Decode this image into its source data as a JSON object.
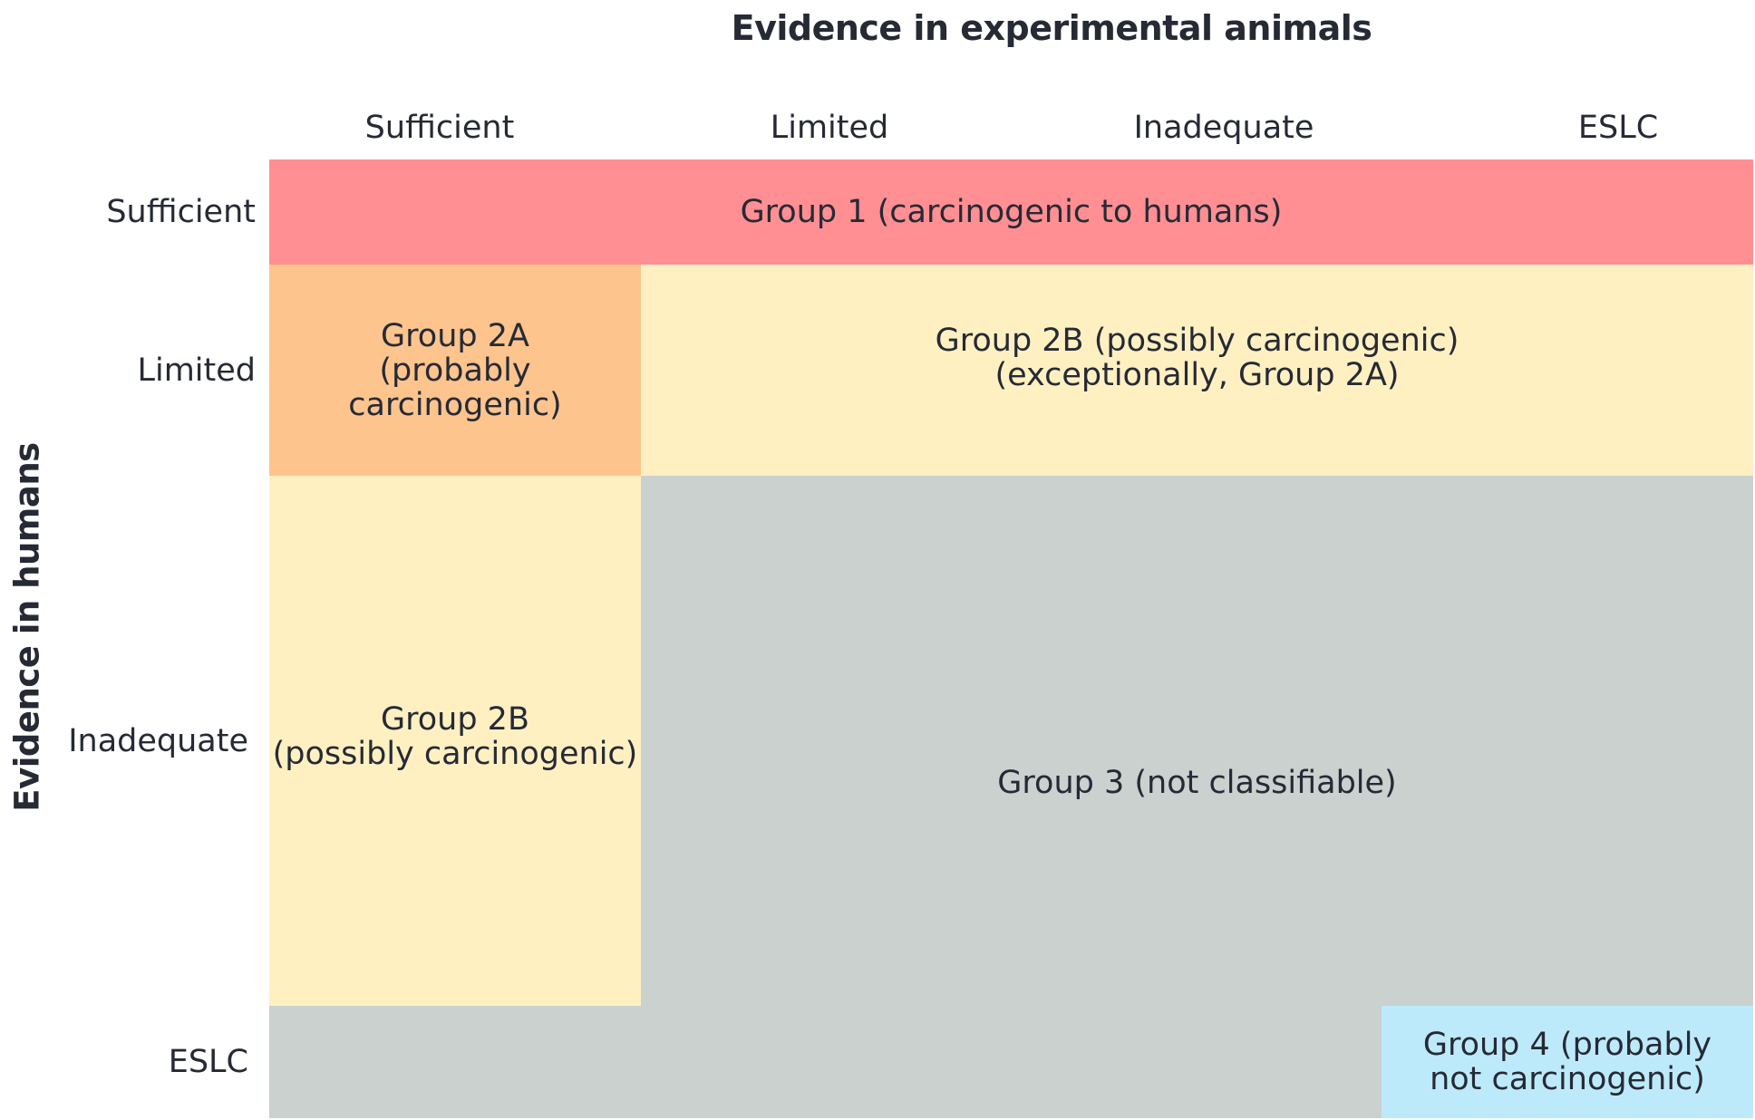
{
  "diagram": {
    "top_title": "Evidence in experimental animals",
    "side_title": "Evidence in humans",
    "column_headers": [
      "Sufficient",
      "Limited",
      "Inadequate",
      "ESLC"
    ],
    "row_headers": [
      "Sufficient",
      "Limited",
      "Inadequate",
      "ESLC"
    ],
    "groups": {
      "group1": "Group 1 (carcinogenic to humans)",
      "group2a": "Group 2A\n(probably\ncarcinogenic)",
      "group2b_limited": "Group 2B (possibly carcinogenic)\n(exceptionally, Group 2A)",
      "group2b_sufficient": "Group 2B\n(possibly carcinogenic)",
      "group3": "Group 3 (not classifiable)",
      "group4": "Group 4 (probably\nnot carcinogenic)"
    },
    "colors": {
      "group1": "#ff8f93",
      "group2a": "#fec48e",
      "group2b": "#fff0c2",
      "group3": "#cad1cf",
      "group4": "#bdeafb",
      "text": "#262a35"
    }
  }
}
